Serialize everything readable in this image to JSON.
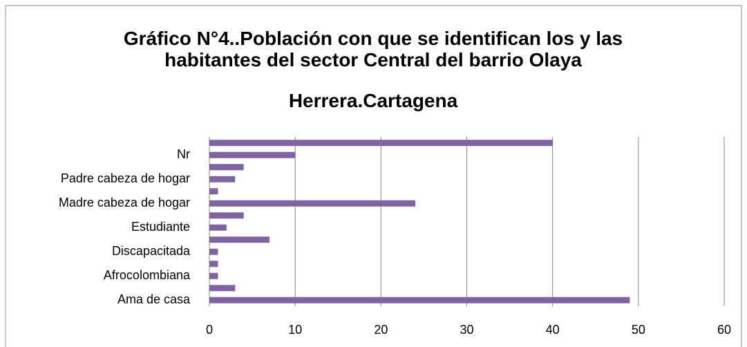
{
  "chart_data": {
    "type": "bar",
    "orientation": "horizontal",
    "title": "Gráfico N°4..Población con que se identifican los y las habitantes del sector Central del barrio Olaya",
    "subtitle": "Herrera.Cartagena",
    "categories": [
      "Ama de casa",
      null,
      "Afrocolombiana",
      null,
      "Discapacitada",
      null,
      "Estudiante",
      null,
      "Madre cabeza de hogar",
      null,
      "Padre cabeza de hogar",
      null,
      "Nr",
      null
    ],
    "values": [
      49,
      3,
      1,
      1,
      1,
      7,
      2,
      4,
      24,
      1,
      3,
      4,
      10,
      40
    ],
    "color": "#8064a2",
    "xlim": [
      0,
      60
    ],
    "xticks": [
      0,
      10,
      20,
      30,
      40,
      50,
      60
    ],
    "grid": true
  }
}
